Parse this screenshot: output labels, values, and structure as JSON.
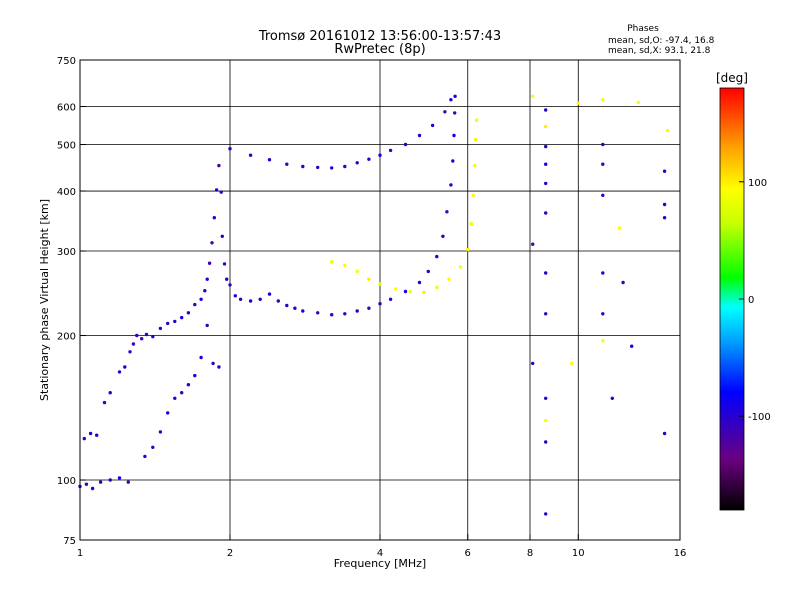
{
  "header": {
    "title_line1": "Tromsø 20161012 13:56:00-13:57:43",
    "title_line2": "RwPretec (8p)"
  },
  "stats": {
    "heading": "Phases",
    "line_o": "mean, sd,O: -97.4, 16.8",
    "line_x": "mean, sd,X:  93.1, 21.8"
  },
  "colorbar": {
    "unit_label": "[deg]",
    "ticks": [
      {
        "value": 100,
        "label": "100"
      },
      {
        "value": 0,
        "label": "0"
      },
      {
        "value": -100,
        "label": "-100"
      }
    ],
    "range": [
      -180,
      180
    ]
  },
  "chart_data": {
    "type": "scatter",
    "title": "Tromsø 20161012 13:56:00-13:57:43",
    "subtitle": "RwPretec (8p)",
    "xlabel": "Frequency [MHz]",
    "ylabel": "Stationary phase Virtual Height [km]",
    "xscale": "log",
    "yscale": "log",
    "xlim": [
      1,
      16
    ],
    "ylim": [
      75,
      750
    ],
    "x_ticks": [
      {
        "value": 1,
        "label": "1"
      },
      {
        "value": 2,
        "label": "2"
      },
      {
        "value": 4,
        "label": "4"
      },
      {
        "value": 6,
        "label": "6"
      },
      {
        "value": 8,
        "label": "8"
      },
      {
        "value": 10,
        "label": "10"
      },
      {
        "value": 16,
        "label": "16"
      }
    ],
    "y_ticks": [
      {
        "value": 75,
        "label": "75"
      },
      {
        "value": 100,
        "label": "100"
      },
      {
        "value": 200,
        "label": "200"
      },
      {
        "value": 300,
        "label": "300"
      },
      {
        "value": 400,
        "label": "400"
      },
      {
        "value": 500,
        "label": "500"
      },
      {
        "value": 600,
        "label": "600"
      },
      {
        "value": 750,
        "label": "750"
      }
    ],
    "grid_x": [
      2,
      4,
      6,
      8,
      10
    ],
    "grid_y": [
      100,
      200,
      300,
      400,
      500,
      600
    ],
    "color_scale": "phase [deg], -180 to 180",
    "series": [
      {
        "points": [
          [
            1.0,
            97,
            -100
          ],
          [
            1.03,
            98,
            -110
          ],
          [
            1.06,
            96,
            -95
          ],
          [
            1.1,
            99,
            -105
          ],
          [
            1.15,
            100,
            -100
          ],
          [
            1.2,
            101,
            -90
          ],
          [
            1.25,
            99,
            -115
          ],
          [
            1.02,
            122,
            -105
          ],
          [
            1.05,
            125,
            -100
          ],
          [
            1.08,
            124,
            -95
          ],
          [
            1.12,
            145,
            -110
          ],
          [
            1.15,
            152,
            -100
          ],
          [
            1.2,
            168,
            -105
          ],
          [
            1.23,
            172,
            -95
          ],
          [
            1.26,
            185,
            -110
          ],
          [
            1.28,
            192,
            -115
          ],
          [
            1.3,
            200,
            -100
          ],
          [
            1.33,
            197,
            -120
          ],
          [
            1.36,
            201,
            -105
          ],
          [
            1.4,
            199,
            -95
          ],
          [
            1.45,
            207,
            -110
          ],
          [
            1.5,
            212,
            -100
          ],
          [
            1.55,
            214,
            -105
          ],
          [
            1.6,
            218,
            -90
          ],
          [
            1.65,
            223,
            -100
          ],
          [
            1.7,
            232,
            -110
          ],
          [
            1.75,
            238,
            -95
          ],
          [
            1.78,
            248,
            -105
          ],
          [
            1.8,
            262,
            -100
          ],
          [
            1.82,
            283,
            -110
          ],
          [
            1.84,
            312,
            -115
          ],
          [
            1.86,
            352,
            -100
          ],
          [
            1.88,
            402,
            -95
          ],
          [
            1.9,
            452,
            -120
          ],
          [
            1.92,
            398,
            -105
          ],
          [
            1.93,
            322,
            -100
          ],
          [
            1.95,
            282,
            -110
          ],
          [
            1.97,
            262,
            -95
          ],
          [
            1.35,
            112,
            -100
          ],
          [
            1.4,
            117,
            -110
          ],
          [
            1.45,
            126,
            -105
          ],
          [
            1.5,
            138,
            -95
          ],
          [
            1.55,
            148,
            -100
          ],
          [
            1.6,
            152,
            -110
          ],
          [
            1.65,
            158,
            -105
          ],
          [
            1.7,
            165,
            -100
          ],
          [
            1.75,
            180,
            -95
          ],
          [
            1.8,
            210,
            -110
          ],
          [
            1.85,
            175,
            -100
          ],
          [
            1.9,
            172,
            -105
          ],
          [
            2.0,
            255,
            -105
          ],
          [
            2.05,
            242,
            -95
          ],
          [
            2.1,
            238,
            -110
          ],
          [
            2.2,
            236,
            -100
          ],
          [
            2.3,
            238,
            -105
          ],
          [
            2.4,
            244,
            -95
          ],
          [
            2.5,
            236,
            -110
          ],
          [
            2.6,
            231,
            -100
          ],
          [
            2.7,
            228,
            -105
          ],
          [
            2.8,
            225,
            -95
          ],
          [
            3.0,
            223,
            -110
          ],
          [
            3.2,
            221,
            -100
          ],
          [
            3.4,
            222,
            -105
          ],
          [
            3.6,
            225,
            -95
          ],
          [
            3.8,
            228,
            -110
          ],
          [
            4.0,
            233,
            -100
          ],
          [
            4.2,
            238,
            -105
          ],
          [
            4.5,
            247,
            -95
          ],
          [
            4.8,
            258,
            -110
          ],
          [
            5.0,
            272,
            -100
          ],
          [
            5.2,
            292,
            -105
          ],
          [
            5.35,
            322,
            -95
          ],
          [
            5.45,
            362,
            -110
          ],
          [
            5.55,
            412,
            -100
          ],
          [
            5.6,
            462,
            -105
          ],
          [
            5.63,
            522,
            -95
          ],
          [
            5.65,
            582,
            -110
          ],
          [
            5.66,
            630,
            -100
          ],
          [
            2.0,
            490,
            -100
          ],
          [
            2.2,
            475,
            -105
          ],
          [
            2.4,
            465,
            -95
          ],
          [
            2.6,
            455,
            -110
          ],
          [
            2.8,
            450,
            -100
          ],
          [
            3.0,
            448,
            -105
          ],
          [
            3.2,
            447,
            -95
          ],
          [
            3.4,
            450,
            -110
          ],
          [
            3.6,
            458,
            -100
          ],
          [
            3.8,
            466,
            -105
          ],
          [
            4.0,
            475,
            -95
          ],
          [
            4.2,
            486,
            -110
          ],
          [
            4.5,
            500,
            -100
          ],
          [
            4.8,
            522,
            -105
          ],
          [
            5.1,
            548,
            -95
          ],
          [
            5.4,
            585,
            -110
          ],
          [
            5.55,
            620,
            -100
          ],
          [
            3.2,
            285,
            85
          ],
          [
            3.4,
            280,
            95
          ],
          [
            3.6,
            272,
            90
          ],
          [
            3.8,
            262,
            100
          ],
          [
            4.0,
            256,
            85
          ],
          [
            4.3,
            250,
            95
          ],
          [
            4.6,
            247,
            90
          ],
          [
            4.9,
            246,
            100
          ],
          [
            5.2,
            252,
            85
          ],
          [
            5.5,
            262,
            95
          ],
          [
            5.8,
            278,
            90
          ],
          [
            6.0,
            302,
            100
          ],
          [
            6.1,
            342,
            85
          ],
          [
            6.15,
            392,
            95
          ],
          [
            6.2,
            452,
            90
          ],
          [
            6.22,
            512,
            100
          ],
          [
            6.25,
            562,
            85
          ],
          [
            8.1,
            630,
            90
          ],
          [
            8.1,
            310,
            -120
          ],
          [
            8.1,
            175,
            -100
          ],
          [
            8.6,
            590,
            -105
          ],
          [
            8.6,
            545,
            100
          ],
          [
            8.6,
            495,
            -110
          ],
          [
            8.6,
            455,
            -95
          ],
          [
            8.6,
            415,
            -100
          ],
          [
            8.6,
            360,
            -110
          ],
          [
            8.6,
            270,
            -100
          ],
          [
            8.6,
            222,
            -105
          ],
          [
            8.6,
            148,
            -100
          ],
          [
            8.6,
            133,
            95
          ],
          [
            8.6,
            120,
            -105
          ],
          [
            8.6,
            85,
            -100
          ],
          [
            9.7,
            175,
            90
          ],
          [
            10.0,
            610,
            95
          ],
          [
            11.2,
            620,
            90
          ],
          [
            11.2,
            500,
            -105
          ],
          [
            11.2,
            455,
            -110
          ],
          [
            11.2,
            392,
            -100
          ],
          [
            11.2,
            270,
            -105
          ],
          [
            11.2,
            222,
            -100
          ],
          [
            11.2,
            195,
            90
          ],
          [
            12.3,
            258,
            -110
          ],
          [
            13.2,
            612,
            95
          ],
          [
            14.9,
            440,
            -100
          ],
          [
            14.9,
            375,
            -105
          ],
          [
            14.9,
            352,
            -100
          ],
          [
            14.9,
            125,
            -105
          ],
          [
            15.1,
            535,
            90
          ],
          [
            12.1,
            335,
            90
          ],
          [
            12.8,
            190,
            -100
          ],
          [
            11.7,
            148,
            -105
          ]
        ]
      }
    ]
  }
}
